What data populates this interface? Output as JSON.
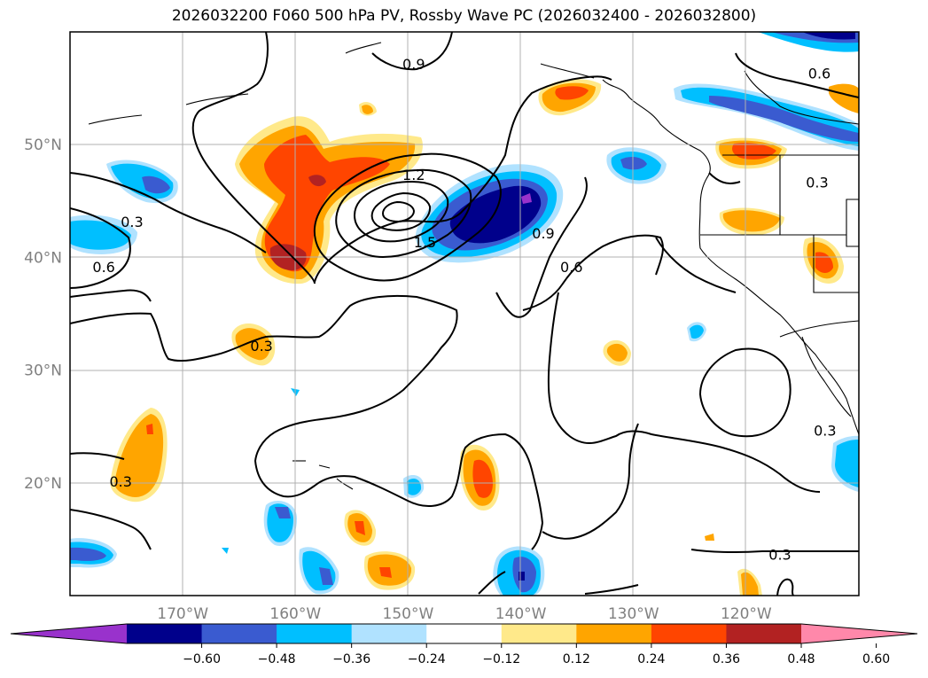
{
  "title": "2026032200 F060 500 hPa PV, Rossby Wave PC (2026032400 - 2026032800)",
  "map": {
    "lat_labels": [
      {
        "lat": 50,
        "text": "50°N"
      },
      {
        "lat": 40,
        "text": "40°N"
      },
      {
        "lat": 30,
        "text": "30°N"
      },
      {
        "lat": 20,
        "text": "20°N"
      }
    ],
    "lon_labels": [
      {
        "lon": -170,
        "text": "170°W"
      },
      {
        "lon": -160,
        "text": "160°W"
      },
      {
        "lon": -150,
        "text": "150°W"
      },
      {
        "lon": -140,
        "text": "140°W"
      },
      {
        "lon": -130,
        "text": "130°W"
      },
      {
        "lon": -120,
        "text": "120°W"
      }
    ],
    "extent": {
      "lon_min": -180,
      "lon_max": -110,
      "lat_min": 10,
      "lat_max": 60
    },
    "contour_labels": [
      {
        "text": "0.9",
        "lon": -149.5,
        "lat": 57.0
      },
      {
        "text": "0.6",
        "lon": -113.5,
        "lat": 56.2
      },
      {
        "text": "1.2",
        "lon": -149.5,
        "lat": 47.2
      },
      {
        "text": "1.5",
        "lon": -148.5,
        "lat": 41.2
      },
      {
        "text": "0.9",
        "lon": -138.0,
        "lat": 42.0
      },
      {
        "text": "0.3",
        "lon": -113.7,
        "lat": 46.5
      },
      {
        "text": "0.3",
        "lon": -174.5,
        "lat": 43.0
      },
      {
        "text": "0.6",
        "lon": -177.0,
        "lat": 39.0
      },
      {
        "text": "0.6",
        "lon": -135.5,
        "lat": 39.0
      },
      {
        "text": "0.3",
        "lon": -163.0,
        "lat": 32.0
      },
      {
        "text": "0.3",
        "lon": -175.5,
        "lat": 20.0
      },
      {
        "text": "0.3",
        "lon": -113.0,
        "lat": 24.5
      },
      {
        "text": "0.3",
        "lon": -117.0,
        "lat": 13.5
      }
    ]
  },
  "colorbar": {
    "colors": [
      "#9932cc",
      "#00008b",
      "#3a5bd0",
      "#00bfff",
      "#b0e2ff",
      "#ffffff",
      "#ffe98a",
      "#ffa500",
      "#ff4500",
      "#b22222",
      "#ff88aa"
    ],
    "tick_labels": [
      "−0.60",
      "−0.48",
      "−0.36",
      "−0.24",
      "−0.12",
      "0.12",
      "0.24",
      "0.36",
      "0.48",
      "0.60"
    ]
  }
}
